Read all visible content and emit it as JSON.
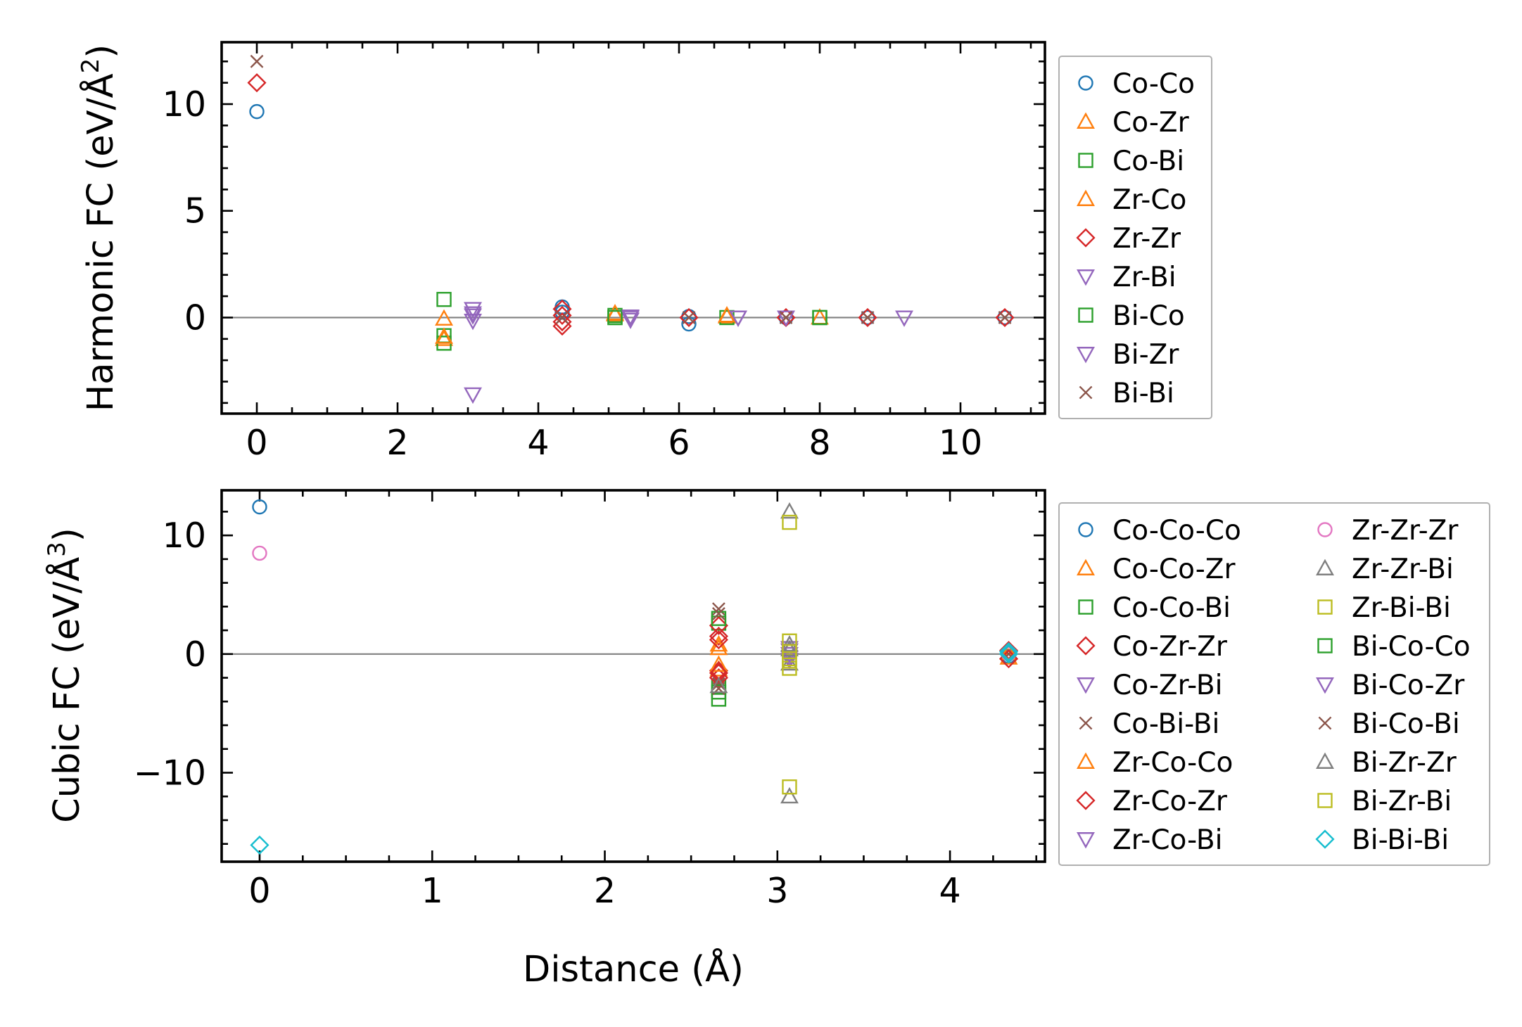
{
  "chart_data": [
    {
      "type": "scatter",
      "ylabel": "Harmonic FC (eV/Å²)",
      "ylabel_parts": {
        "main": "Harmonic FC (eV/Å",
        "sup": "2",
        "close": ")"
      },
      "xlim": [
        -0.5,
        11.2
      ],
      "ylim": [
        -4.5,
        12.9
      ],
      "xticks": [
        0,
        2,
        4,
        6,
        8,
        10
      ],
      "yticks": [
        0,
        5,
        10
      ],
      "xtick_labels": [
        "0",
        "2",
        "4",
        "6",
        "8",
        "10"
      ],
      "ytick_labels": [
        "0",
        "5",
        "10"
      ],
      "x_minor_step": 0.5,
      "y_minor_step": 1,
      "zero_line": true,
      "grid": false,
      "legend_position": "outside-right",
      "legend_columns": 1,
      "series": [
        {
          "name": "Co-Co",
          "marker": "circle",
          "color": "#1f77b4",
          "points": [
            [
              0,
              9.65
            ],
            [
              4.34,
              0.5
            ],
            [
              4.34,
              0.25
            ],
            [
              6.14,
              -0.3
            ],
            [
              6.14,
              0.05
            ],
            [
              7.52,
              0.0
            ],
            [
              8.68,
              0.0
            ],
            [
              10.63,
              0.0
            ]
          ]
        },
        {
          "name": "Co-Zr",
          "marker": "triangle-up",
          "color": "#ff7f0e",
          "points": [
            [
              2.66,
              -0.05
            ],
            [
              2.66,
              -1.0
            ],
            [
              5.09,
              0.15
            ],
            [
              6.68,
              0.05
            ],
            [
              8.0,
              0.0
            ]
          ]
        },
        {
          "name": "Co-Bi",
          "marker": "square",
          "color": "#2ca02c",
          "points": [
            [
              2.66,
              0.85
            ],
            [
              2.66,
              -0.85
            ],
            [
              2.66,
              -1.2
            ],
            [
              5.09,
              0.0
            ],
            [
              5.09,
              0.1
            ],
            [
              6.68,
              0.0
            ],
            [
              8.0,
              0.0
            ]
          ]
        },
        {
          "name": "Zr-Co",
          "marker": "triangle-up",
          "color": "#ff7f0e",
          "points": [
            [
              2.66,
              -0.9
            ],
            [
              5.09,
              0.2
            ],
            [
              6.68,
              0.1
            ]
          ]
        },
        {
          "name": "Zr-Zr",
          "marker": "diamond",
          "color": "#d62728",
          "points": [
            [
              0,
              11.0
            ],
            [
              4.34,
              0.4
            ],
            [
              4.34,
              0.1
            ],
            [
              4.34,
              -0.2
            ],
            [
              4.34,
              -0.4
            ],
            [
              6.14,
              0.0
            ],
            [
              7.52,
              0.0
            ],
            [
              8.68,
              0.0
            ],
            [
              10.63,
              0.0
            ]
          ]
        },
        {
          "name": "Zr-Bi",
          "marker": "triangle-down",
          "color": "#9467bd",
          "points": [
            [
              3.07,
              0.4
            ],
            [
              3.07,
              0.1
            ],
            [
              3.07,
              -0.15
            ],
            [
              5.31,
              0.05
            ],
            [
              5.31,
              -0.1
            ],
            [
              6.84,
              0.0
            ],
            [
              7.52,
              0.0
            ],
            [
              9.2,
              0.0
            ]
          ]
        },
        {
          "name": "Bi-Co",
          "marker": "square",
          "color": "#2ca02c",
          "points": [
            [
              5.09,
              0.0
            ],
            [
              8.0,
              0.0
            ]
          ]
        },
        {
          "name": "Bi-Zr",
          "marker": "triangle-down",
          "color": "#9467bd",
          "points": [
            [
              3.07,
              -3.6
            ],
            [
              3.07,
              0.2
            ],
            [
              5.31,
              0.0
            ],
            [
              6.84,
              0.0
            ]
          ]
        },
        {
          "name": "Bi-Bi",
          "marker": "x",
          "color": "#8c564b",
          "points": [
            [
              0,
              12.0
            ],
            [
              4.34,
              0.0
            ],
            [
              6.14,
              0.0
            ],
            [
              7.52,
              0.0
            ],
            [
              8.68,
              0.0
            ],
            [
              10.63,
              0.0
            ]
          ]
        }
      ]
    },
    {
      "type": "scatter",
      "xlabel": "Distance (Å)",
      "ylabel": "Cubic FC (eV/Å³)",
      "ylabel_parts": {
        "main": "Cubic FC (eV/Å",
        "sup": "3",
        "close": ")"
      },
      "xlim": [
        -0.22,
        4.55
      ],
      "ylim": [
        -17.5,
        13.8
      ],
      "xticks": [
        0,
        1,
        2,
        3,
        4
      ],
      "yticks": [
        -10,
        0,
        10
      ],
      "xtick_labels": [
        "0",
        "1",
        "2",
        "3",
        "4"
      ],
      "ytick_labels": [
        "−10",
        "0",
        "10"
      ],
      "x_minor_step": 0.25,
      "y_minor_step": 2,
      "zero_line": true,
      "grid": false,
      "legend_position": "outside-right",
      "legend_columns": 2,
      "series": [
        {
          "name": "Co-Co-Co",
          "marker": "circle",
          "color": "#1f77b4",
          "points": [
            [
              0,
              12.4
            ],
            [
              4.34,
              0.2
            ],
            [
              4.34,
              -0.2
            ]
          ]
        },
        {
          "name": "Co-Co-Zr",
          "marker": "triangle-up",
          "color": "#ff7f0e",
          "points": [
            [
              2.66,
              0.8
            ],
            [
              2.66,
              -1.3
            ],
            [
              4.34,
              -0.3
            ]
          ]
        },
        {
          "name": "Co-Co-Bi",
          "marker": "square",
          "color": "#2ca02c",
          "points": [
            [
              2.66,
              2.6
            ],
            [
              2.66,
              -2.8
            ],
            [
              2.66,
              -3.8
            ]
          ]
        },
        {
          "name": "Co-Zr-Zr",
          "marker": "diamond",
          "color": "#d62728",
          "points": [
            [
              2.66,
              2.4
            ],
            [
              2.66,
              1.5
            ],
            [
              2.66,
              -1.4
            ],
            [
              2.66,
              -2.0
            ],
            [
              4.34,
              0.3
            ]
          ]
        },
        {
          "name": "Co-Zr-Bi",
          "marker": "triangle-down",
          "color": "#9467bd",
          "points": [
            [
              3.07,
              0.5
            ],
            [
              3.07,
              -0.5
            ]
          ]
        },
        {
          "name": "Co-Bi-Bi",
          "marker": "x",
          "color": "#8c564b",
          "points": [
            [
              2.66,
              3.8
            ],
            [
              2.66,
              -2.5
            ],
            [
              4.34,
              0.0
            ]
          ]
        },
        {
          "name": "Zr-Co-Co",
          "marker": "triangle-up",
          "color": "#ff7f0e",
          "points": [
            [
              2.66,
              0.5
            ],
            [
              2.66,
              -0.9
            ],
            [
              4.34,
              0.1
            ]
          ]
        },
        {
          "name": "Zr-Co-Zr",
          "marker": "diamond",
          "color": "#d62728",
          "points": [
            [
              2.66,
              1.2
            ],
            [
              2.66,
              -1.6
            ],
            [
              4.34,
              -0.4
            ]
          ]
        },
        {
          "name": "Zr-Co-Bi",
          "marker": "triangle-down",
          "color": "#9467bd",
          "points": [
            [
              3.07,
              0.3
            ],
            [
              3.07,
              -0.3
            ]
          ]
        },
        {
          "name": "Zr-Zr-Zr",
          "marker": "circle",
          "color": "#e377c2",
          "points": [
            [
              0,
              8.5
            ],
            [
              4.34,
              0.0
            ]
          ]
        },
        {
          "name": "Zr-Zr-Bi",
          "marker": "triangle-up",
          "color": "#7f7f7f",
          "points": [
            [
              3.07,
              12.0
            ],
            [
              3.07,
              0.8
            ],
            [
              3.07,
              -0.8
            ]
          ]
        },
        {
          "name": "Zr-Bi-Bi",
          "marker": "square",
          "color": "#bcbd22",
          "points": [
            [
              3.07,
              11.1
            ],
            [
              3.07,
              1.1
            ],
            [
              3.07,
              -0.6
            ],
            [
              3.07,
              -1.2
            ]
          ]
        },
        {
          "name": "Bi-Co-Co",
          "marker": "square",
          "color": "#2ca02c",
          "points": [
            [
              2.66,
              3.0
            ],
            [
              2.66,
              -3.2
            ]
          ]
        },
        {
          "name": "Bi-Co-Zr",
          "marker": "triangle-down",
          "color": "#9467bd",
          "points": [
            [
              3.07,
              0.0
            ]
          ]
        },
        {
          "name": "Bi-Co-Bi",
          "marker": "x",
          "color": "#8c564b",
          "points": [
            [
              2.66,
              3.4
            ],
            [
              2.66,
              -2.9
            ]
          ]
        },
        {
          "name": "Bi-Zr-Zr",
          "marker": "triangle-up",
          "color": "#7f7f7f",
          "points": [
            [
              3.07,
              -12.0
            ],
            [
              3.07,
              0.4
            ],
            [
              2.66,
              -2.7
            ]
          ]
        },
        {
          "name": "Bi-Zr-Bi",
          "marker": "square",
          "color": "#bcbd22",
          "points": [
            [
              3.07,
              -11.2
            ],
            [
              3.07,
              0.2
            ],
            [
              3.07,
              -0.4
            ]
          ]
        },
        {
          "name": "Bi-Bi-Bi",
          "marker": "diamond",
          "color": "#17becf",
          "points": [
            [
              0,
              -16.1
            ],
            [
              4.34,
              0.0
            ],
            [
              4.34,
              0.2
            ]
          ]
        }
      ]
    }
  ]
}
